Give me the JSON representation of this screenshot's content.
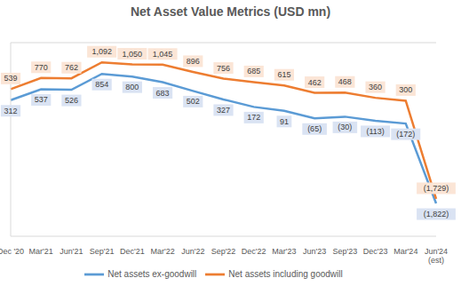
{
  "chart_data": {
    "type": "line",
    "title": "Net Asset Value Metrics (USD mn)",
    "categories": [
      "Dec '20",
      "Mar'21",
      "Jun'21",
      "Sep'21",
      "Dec'21",
      "Mar'22",
      "Jun'22",
      "Sep'22",
      "Dec'22",
      "Mar'23",
      "Jun'23",
      "Sep'23",
      "Dec'23",
      "Mar'24",
      "Jun'24 (est)"
    ],
    "series": [
      {
        "name": "Net assets ex-goodwill",
        "color": "#5b9bd5",
        "values": [
          312,
          537,
          526,
          854,
          800,
          683,
          502,
          327,
          172,
          91,
          -65,
          -30,
          -113,
          -172,
          -1822
        ],
        "value_labels": [
          "312",
          "537",
          "526",
          "854",
          "800",
          "683",
          "502",
          "327",
          "172",
          "91",
          "(65)",
          "(30)",
          "(113)",
          "(172)",
          "(1,822)"
        ]
      },
      {
        "name": "Net assets including goodwill",
        "color": "#ed7d31",
        "values": [
          539,
          770,
          762,
          1092,
          1050,
          1045,
          896,
          756,
          685,
          615,
          462,
          468,
          360,
          300,
          -1729
        ],
        "value_labels": [
          "539",
          "770",
          "762",
          "1,092",
          "1,050",
          "1,045",
          "896",
          "756",
          "685",
          "615",
          "462",
          "468",
          "360",
          "300",
          "(1,729)"
        ]
      }
    ],
    "ylim": [
      -2500,
      1500
    ],
    "yticks": [
      0
    ],
    "grid": true,
    "tick_labels": "x",
    "data_labels": true,
    "legend": "bottom"
  }
}
